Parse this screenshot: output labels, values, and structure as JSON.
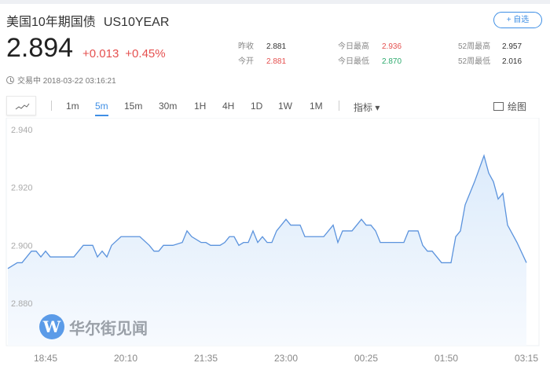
{
  "header": {
    "name": "美国10年期国债",
    "code": "US10YEAR",
    "add_watchlist": "+ 自选"
  },
  "quote": {
    "price": "2.894",
    "change": "+0.013",
    "change_pct": "+0.45%",
    "status_time": "交易中 2018-03-22 03:16:21"
  },
  "stats": [
    {
      "label": "昨收",
      "value": "2.881",
      "tone": "neutral"
    },
    {
      "label": "今开",
      "value": "2.881",
      "tone": "up"
    },
    {
      "label": "今日最高",
      "value": "2.936",
      "tone": "up"
    },
    {
      "label": "今日最低",
      "value": "2.870",
      "tone": "down"
    },
    {
      "label": "52周最高",
      "value": "2.957",
      "tone": "neutral"
    },
    {
      "label": "52周最低",
      "value": "2.016",
      "tone": "neutral"
    }
  ],
  "toolbar": {
    "tabs": [
      "1m",
      "5m",
      "15m",
      "30m",
      "1H",
      "4H",
      "1D",
      "1W",
      "1M"
    ],
    "active_tab": "5m",
    "indicators": "指标 ▾",
    "draw": "绘图"
  },
  "colors": {
    "up": "#e5504f",
    "down": "#2daa6d",
    "accent": "#3f8fe5",
    "line": "#5b93dd"
  },
  "watermark": "华尔街见闻",
  "chart_data": {
    "type": "area",
    "ylim": [
      2.88,
      2.94
    ],
    "yticks": [
      "2.940",
      "2.920",
      "2.900",
      "2.880"
    ],
    "xticks": [
      "18:45",
      "20:10",
      "21:35",
      "23:00",
      "00:25",
      "01:50",
      "03:15"
    ],
    "x": [
      "18:05",
      "18:15",
      "18:20",
      "18:30",
      "18:35",
      "18:40",
      "18:45",
      "18:50",
      "19:15",
      "19:25",
      "19:35",
      "19:40",
      "19:45",
      "19:50",
      "19:55",
      "20:05",
      "20:25",
      "20:35",
      "20:40",
      "20:45",
      "20:50",
      "21:00",
      "21:10",
      "21:15",
      "21:20",
      "21:30",
      "21:35",
      "21:40",
      "21:50",
      "21:55",
      "22:00",
      "22:05",
      "22:10",
      "22:15",
      "22:20",
      "22:25",
      "22:30",
      "22:35",
      "22:40",
      "22:45",
      "22:50",
      "23:00",
      "23:05",
      "23:15",
      "23:20",
      "23:40",
      "23:50",
      "23:55",
      "00:00",
      "00:10",
      "00:20",
      "00:25",
      "00:30",
      "00:35",
      "00:40",
      "01:05",
      "01:10",
      "01:20",
      "01:25",
      "01:30",
      "01:35",
      "01:45",
      "01:55",
      "02:00",
      "02:05",
      "02:10",
      "02:20",
      "02:30",
      "02:35",
      "02:40",
      "02:45",
      "02:50",
      "02:55",
      "03:05",
      "03:15"
    ],
    "y": [
      2.892,
      2.894,
      2.894,
      2.898,
      2.898,
      2.896,
      2.898,
      2.896,
      2.896,
      2.9,
      2.9,
      2.896,
      2.898,
      2.896,
      2.9,
      2.903,
      2.903,
      2.9,
      2.898,
      2.898,
      2.9,
      2.9,
      2.901,
      2.905,
      2.903,
      2.901,
      2.901,
      2.9,
      2.9,
      2.901,
      2.903,
      2.903,
      2.9,
      2.901,
      2.901,
      2.905,
      2.901,
      2.903,
      2.901,
      2.901,
      2.905,
      2.909,
      2.907,
      2.907,
      2.903,
      2.903,
      2.907,
      2.901,
      2.905,
      2.905,
      2.909,
      2.907,
      2.907,
      2.905,
      2.901,
      2.901,
      2.905,
      2.905,
      2.9,
      2.898,
      2.898,
      2.894,
      2.894,
      2.903,
      2.905,
      2.914,
      2.922,
      2.931,
      2.925,
      2.922,
      2.916,
      2.918,
      2.907,
      2.901,
      2.894
    ]
  }
}
